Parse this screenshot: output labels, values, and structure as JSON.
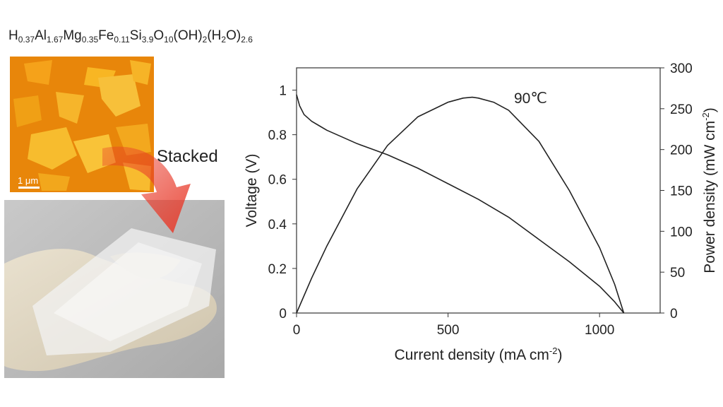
{
  "formula": {
    "parts": [
      {
        "t": "H"
      },
      {
        "s": "0.37"
      },
      {
        "t": "Al"
      },
      {
        "s": "1.67"
      },
      {
        "t": "Mg"
      },
      {
        "s": "0.35"
      },
      {
        "t": "Fe"
      },
      {
        "s": "0.11"
      },
      {
        "t": "Si"
      },
      {
        "s": "3.9"
      },
      {
        "t": "O"
      },
      {
        "s": "10"
      },
      {
        "t": "(OH)"
      },
      {
        "s": "2"
      },
      {
        "t": "(H"
      },
      {
        "s": "2"
      },
      {
        "t": "O)"
      },
      {
        "s": "2.6"
      }
    ]
  },
  "afm": {
    "scale_label": "1 μm"
  },
  "arrow_label": "Stacked",
  "chart_data": {
    "type": "line",
    "annotation": "90℃",
    "xlabel": "Current density (mA cm",
    "xlabel_sup": "-2",
    "xlabel_end": ")",
    "ylabel_left": "Voltage (V)",
    "ylabel_right": "Power density (mW cm",
    "ylabel_right_sup": "-2",
    "ylabel_right_end": ")",
    "xlim": [
      0,
      1200
    ],
    "ylim_left": [
      0,
      1.1
    ],
    "ylim_right": [
      0,
      300
    ],
    "x_ticks": [
      0,
      500,
      1000
    ],
    "y_left_ticks": [
      0,
      0.2,
      0.4,
      0.6,
      0.8,
      1
    ],
    "y_left_tick_labels": [
      "0",
      "0.2",
      "0.4",
      "0.6",
      "0.8",
      "1"
    ],
    "y_right_ticks": [
      0,
      50,
      100,
      150,
      200,
      250,
      300
    ],
    "series": [
      {
        "axis": "left",
        "x": [
          0,
          10,
          25,
          50,
          75,
          100,
          150,
          200,
          250,
          300,
          400,
          500,
          600,
          700,
          800,
          900,
          1000,
          1050,
          1080
        ],
        "y": [
          0.98,
          0.93,
          0.89,
          0.86,
          0.84,
          0.82,
          0.79,
          0.76,
          0.735,
          0.71,
          0.65,
          0.58,
          0.51,
          0.43,
          0.33,
          0.23,
          0.12,
          0.05,
          0.0
        ]
      },
      {
        "axis": "right",
        "x": [
          0,
          50,
          100,
          200,
          300,
          400,
          500,
          550,
          580,
          600,
          650,
          700,
          800,
          900,
          1000,
          1050,
          1080
        ],
        "y": [
          0,
          43,
          82,
          152,
          205,
          240,
          258,
          263,
          264,
          263,
          258,
          248,
          210,
          150,
          80,
          35,
          0
        ]
      }
    ]
  }
}
